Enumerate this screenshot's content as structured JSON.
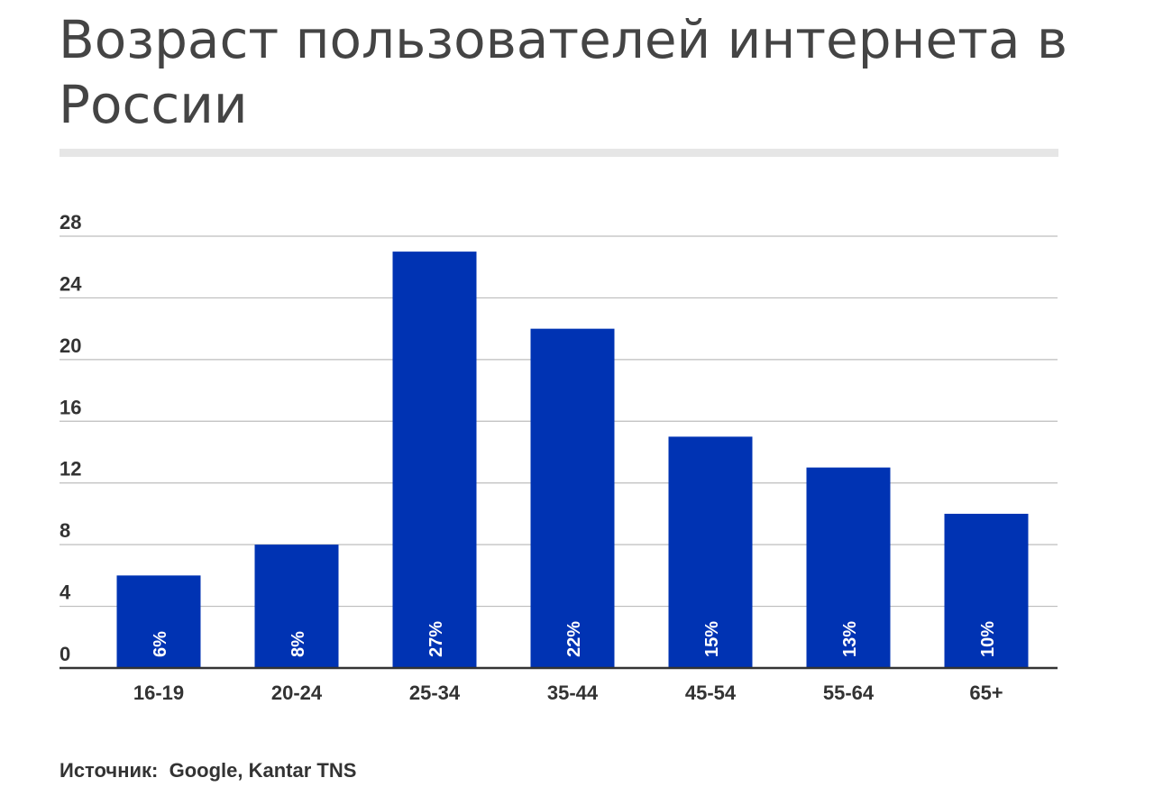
{
  "title": "Возраст пользователей интернета в России",
  "source": {
    "label": "Источник:",
    "text": "Google, Kantar TNS"
  },
  "chart_data": {
    "type": "bar",
    "categories": [
      "16-19",
      "20-24",
      "25-34",
      "35-44",
      "45-54",
      "55-64",
      "65+"
    ],
    "values": [
      6,
      8,
      27,
      22,
      15,
      13,
      10
    ],
    "data_labels": [
      "6%",
      "8%",
      "27%",
      "22%",
      "15%",
      "13%",
      "10%"
    ],
    "y_ticks": [
      0,
      4,
      8,
      12,
      16,
      20,
      24,
      28
    ],
    "ylim": [
      0,
      28
    ],
    "grid": true,
    "bar_color": "#0033b3",
    "grid_color": "#bdbdbd",
    "axis_color": "#333333",
    "label_color": "#ffffff"
  }
}
